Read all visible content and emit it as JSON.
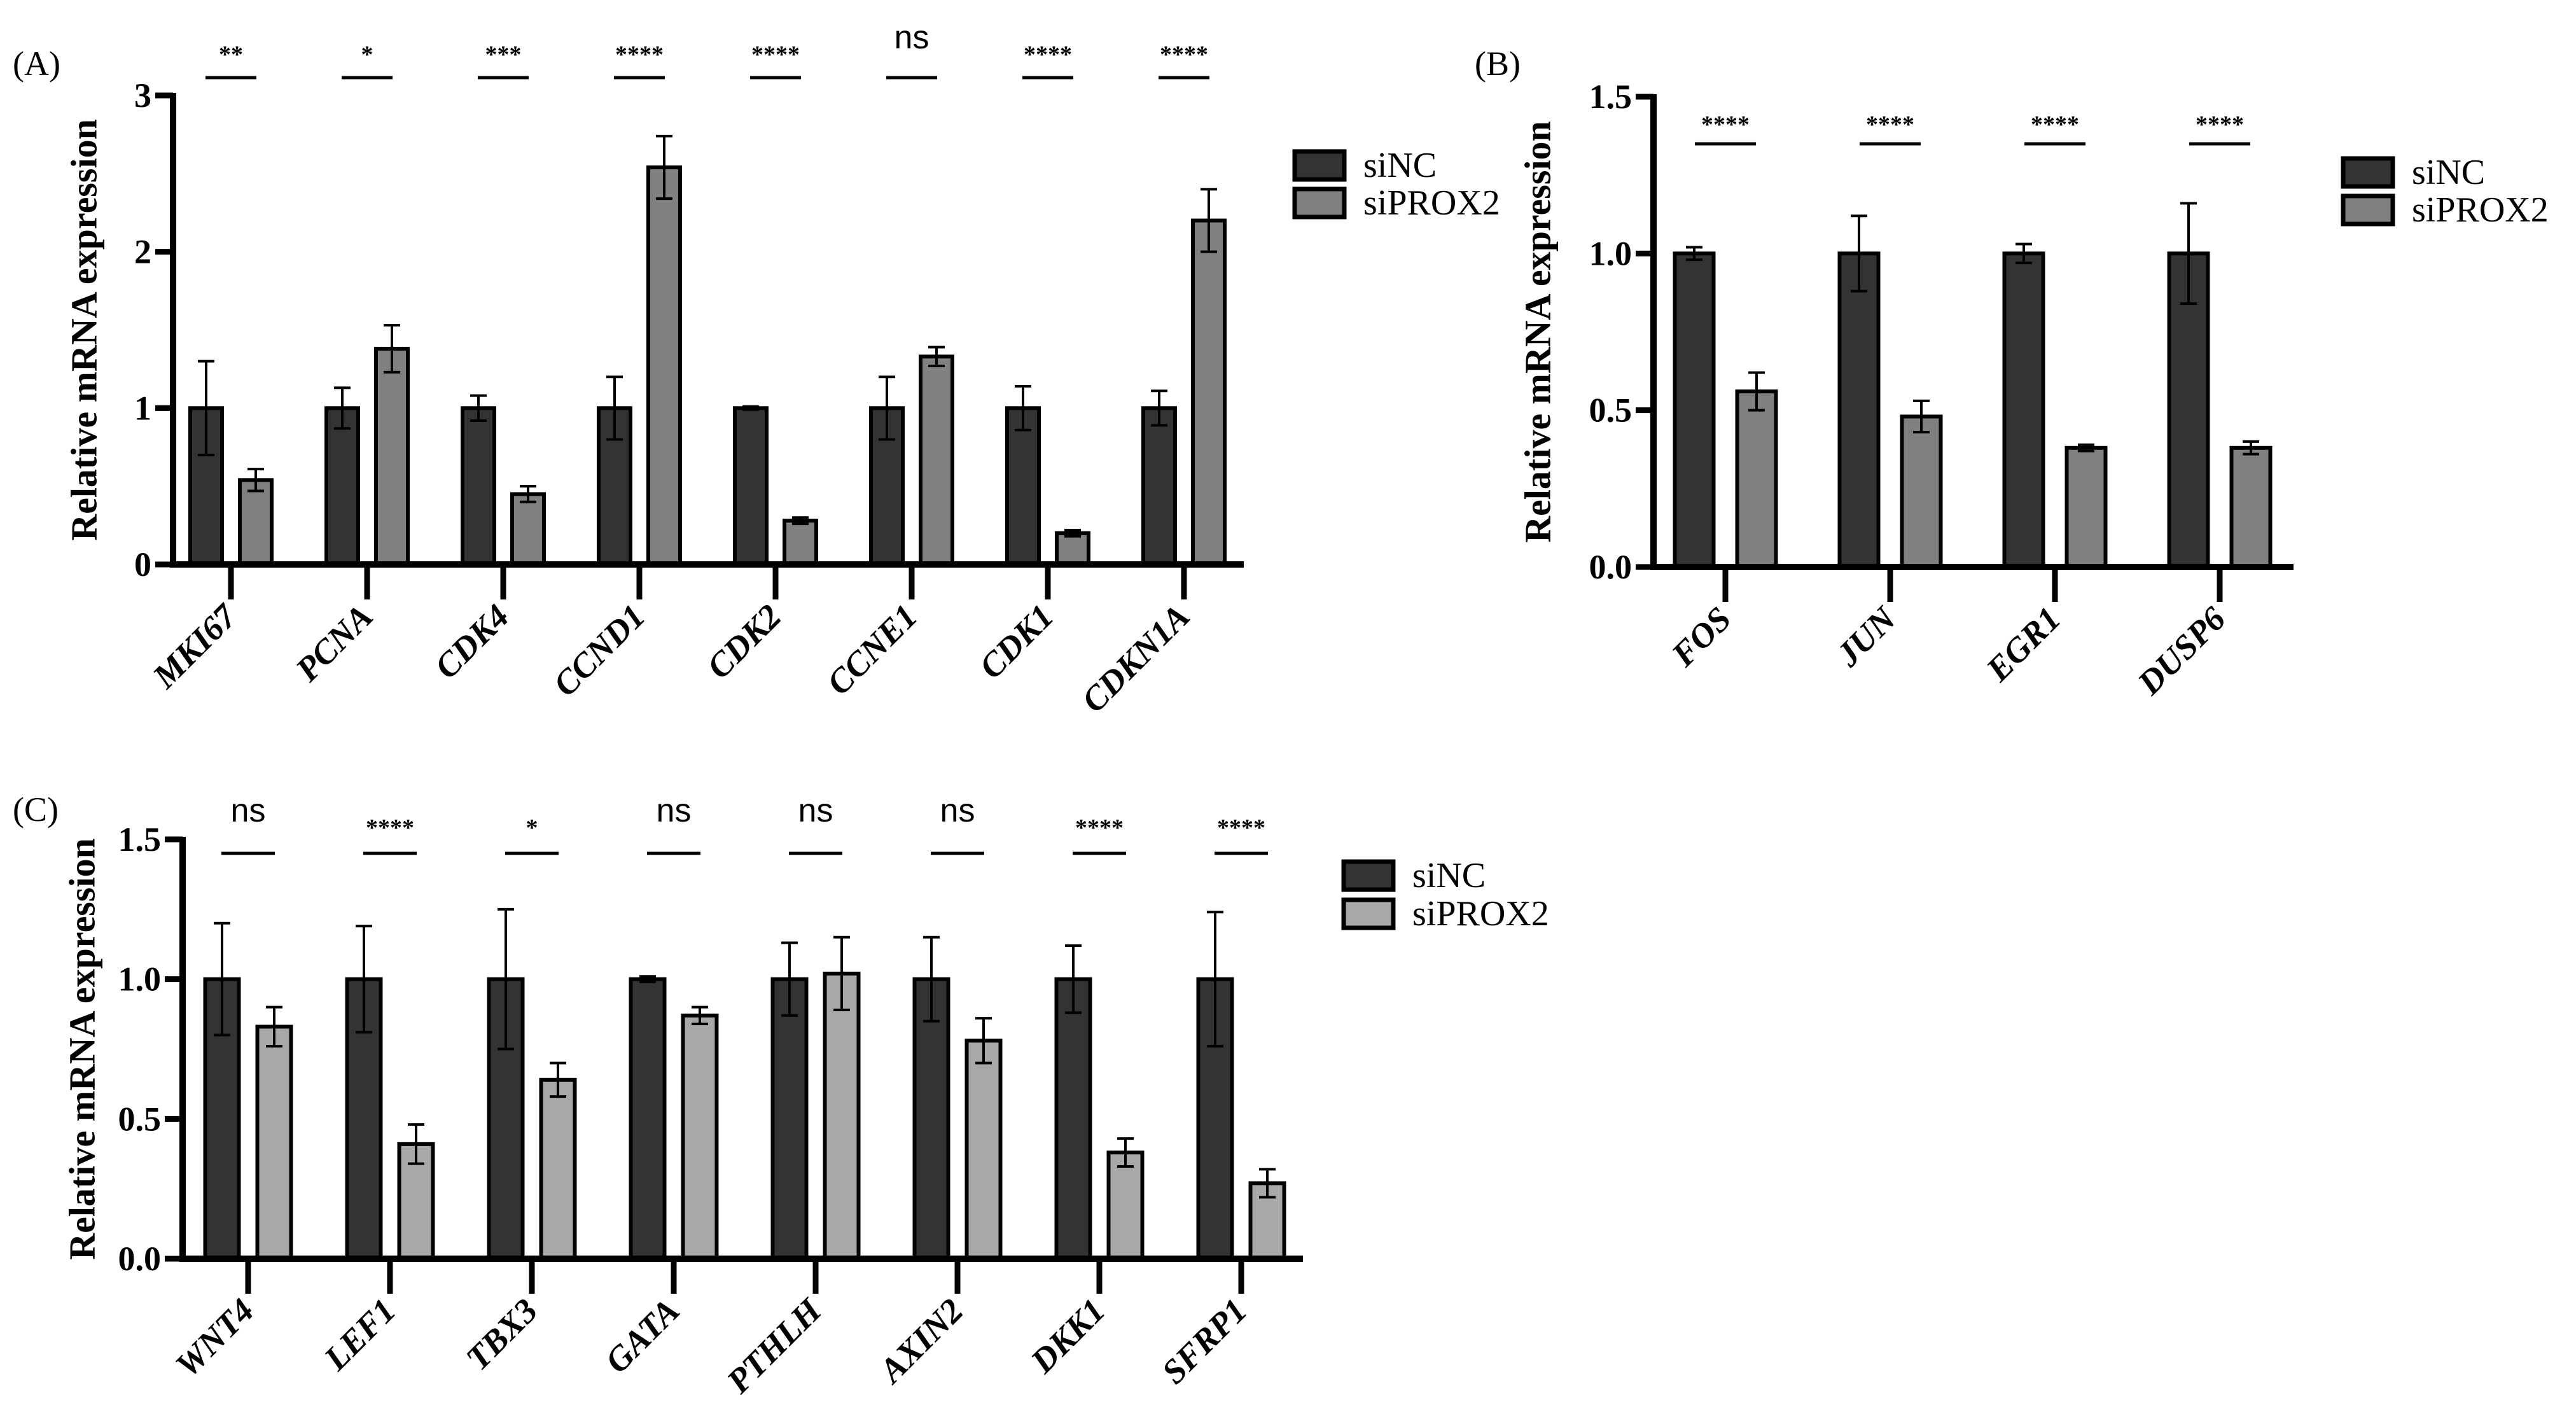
{
  "colors": {
    "siNC": "#333333",
    "siPROX2_A": "#808080",
    "siPROX2_B": "#808080",
    "siPROX2_C": "#a8a8a8",
    "axis": "#000000"
  },
  "chart_data": [
    {
      "panel_label": "(A)",
      "type": "bar",
      "ylabel": "Relative mRNA expression",
      "ylim": [
        0,
        3
      ],
      "yticks": [
        "0",
        "1",
        "2",
        "3"
      ],
      "ytick_values": [
        0,
        1,
        2,
        3
      ],
      "categories": [
        "MKI67",
        "PCNA",
        "CDK4",
        "CCND1",
        "CDK2",
        "CCNE1",
        "CDK1",
        "CDKN1A"
      ],
      "series": [
        {
          "name": "siNC",
          "values": [
            1,
            1,
            1,
            1,
            1,
            1,
            1,
            1
          ],
          "errors": [
            0.3,
            0.13,
            0.08,
            0.2,
            0.01,
            0.2,
            0.14,
            0.11
          ]
        },
        {
          "name": "siPROX2",
          "values": [
            0.54,
            1.38,
            0.45,
            2.54,
            0.28,
            1.33,
            0.2,
            2.2
          ],
          "errors": [
            0.07,
            0.15,
            0.05,
            0.2,
            0.02,
            0.06,
            0.02,
            0.2
          ]
        }
      ],
      "significance": [
        "**",
        "*",
        "***",
        "****",
        "****",
        "ns",
        "****",
        "****"
      ],
      "legend": "right"
    },
    {
      "panel_label": "(B)",
      "type": "bar",
      "ylabel": "Relative mRNA expression",
      "ylim": [
        0,
        1.5
      ],
      "yticks": [
        "0.0",
        "0.5",
        "1.0",
        "1.5"
      ],
      "ytick_values": [
        0,
        0.5,
        1.0,
        1.5
      ],
      "categories": [
        "FOS",
        "JUN",
        "EGR1",
        "DUSP6"
      ],
      "series": [
        {
          "name": "siNC",
          "values": [
            1,
            1,
            1,
            1
          ],
          "errors": [
            0.02,
            0.12,
            0.03,
            0.16
          ]
        },
        {
          "name": "siPROX2",
          "values": [
            0.56,
            0.48,
            0.38,
            0.38
          ],
          "errors": [
            0.06,
            0.05,
            0.01,
            0.02
          ]
        }
      ],
      "significance": [
        "****",
        "****",
        "****",
        "****"
      ],
      "legend": "right"
    },
    {
      "panel_label": "(C)",
      "type": "bar",
      "ylabel": "Relative mRNA expression",
      "ylim": [
        0,
        1.5
      ],
      "yticks": [
        "0.0",
        "0.5",
        "1.0",
        "1.5"
      ],
      "ytick_values": [
        0,
        0.5,
        1.0,
        1.5
      ],
      "categories": [
        "WNT4",
        "LEF1",
        "TBX3",
        "GATA",
        "PTHLH",
        "AXIN2",
        "DKK1",
        "SFRP1"
      ],
      "series": [
        {
          "name": "siNC",
          "values": [
            1,
            1,
            1,
            1,
            1,
            1,
            1,
            1
          ],
          "errors": [
            0.2,
            0.19,
            0.25,
            0.01,
            0.13,
            0.15,
            0.12,
            0.24
          ]
        },
        {
          "name": "siPROX2",
          "values": [
            0.83,
            0.41,
            0.64,
            0.87,
            1.02,
            0.78,
            0.38,
            0.27
          ],
          "errors": [
            0.07,
            0.07,
            0.06,
            0.03,
            0.13,
            0.08,
            0.05,
            0.05
          ]
        }
      ],
      "significance": [
        "ns",
        "****",
        "*",
        "ns",
        "ns",
        "ns",
        "****",
        "****"
      ],
      "legend": "right"
    }
  ]
}
